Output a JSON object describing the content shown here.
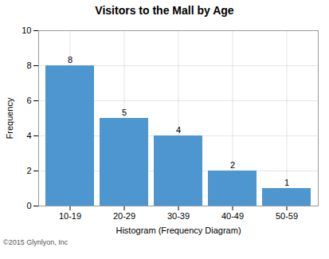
{
  "chart_data": {
    "type": "bar",
    "title": "Visitors to the Mall by Age",
    "xlabel": "Histogram (Frequency Diagram)",
    "ylabel": "Frequency",
    "categories": [
      "10-19",
      "20-29",
      "30-39",
      "40-49",
      "50-59"
    ],
    "values": [
      8,
      5,
      4,
      2,
      1
    ],
    "color": "#4d96d0",
    "ylim": [
      0,
      10
    ],
    "yticks": [
      0,
      2,
      4,
      6,
      8,
      10
    ],
    "grid": true,
    "data_labels": true,
    "annotations": [
      "©2015 Glynlyon, Inc"
    ]
  }
}
